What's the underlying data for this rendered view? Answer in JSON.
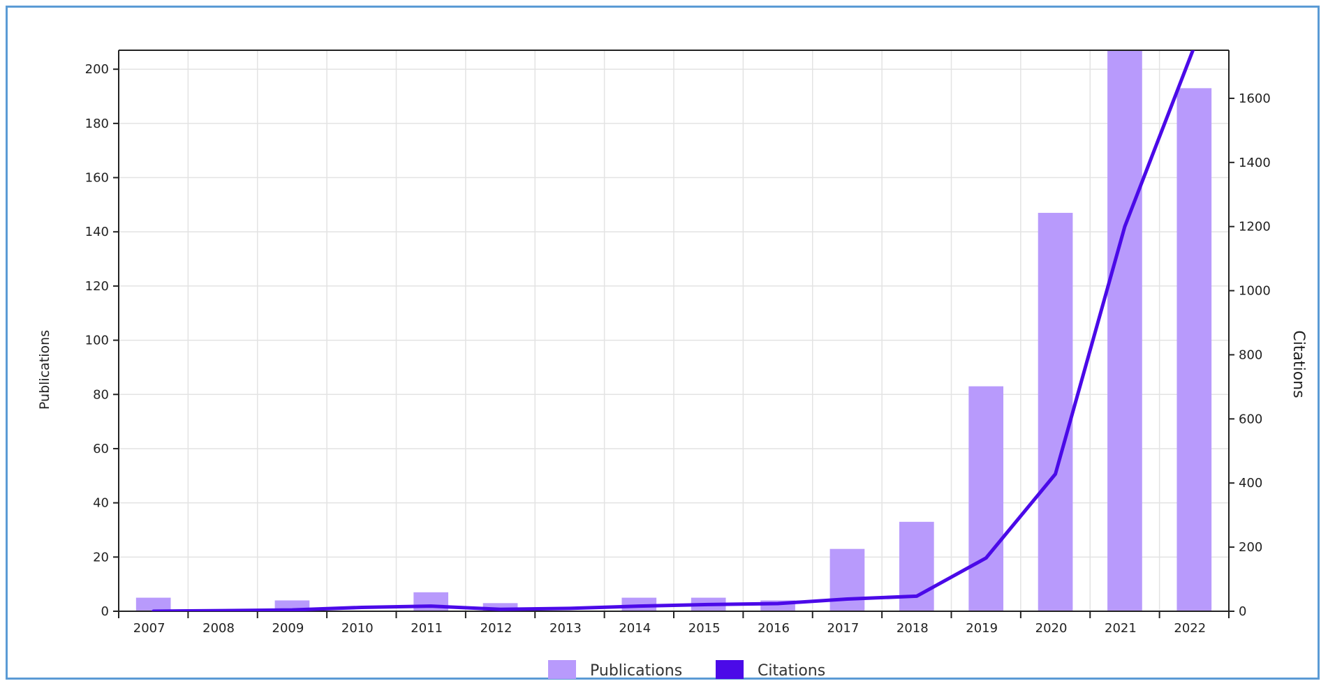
{
  "chart_data": {
    "type": "bar",
    "categories": [
      "2007",
      "2008",
      "2009",
      "2010",
      "2011",
      "2012",
      "2013",
      "2014",
      "2015",
      "2016",
      "2017",
      "2018",
      "2019",
      "2020",
      "2021",
      "2022"
    ],
    "series": [
      {
        "name": "Publications",
        "type": "bar",
        "axis": "left",
        "color": "#b89afc",
        "values": [
          5,
          0,
          4,
          0,
          7,
          3,
          0,
          5,
          5,
          4,
          23,
          33,
          83,
          147,
          210,
          193
        ]
      },
      {
        "name": "Citations",
        "type": "line",
        "axis": "right",
        "color": "#4b0ae8",
        "values": [
          0,
          2,
          4,
          12,
          16,
          6,
          9,
          16,
          21,
          24,
          38,
          47,
          166,
          428,
          1200,
          1760
        ]
      }
    ],
    "ylabel": "Publications",
    "y2label": "Citations",
    "ylim": [
      0,
      207
    ],
    "y2lim": [
      0,
      1750
    ],
    "yticks": [
      0,
      20,
      40,
      60,
      80,
      100,
      120,
      140,
      160,
      180,
      200
    ],
    "y2ticks": [
      0,
      200,
      400,
      600,
      800,
      1000,
      1200,
      1400,
      1600
    ],
    "grid": true,
    "legend_position": "bottom"
  }
}
